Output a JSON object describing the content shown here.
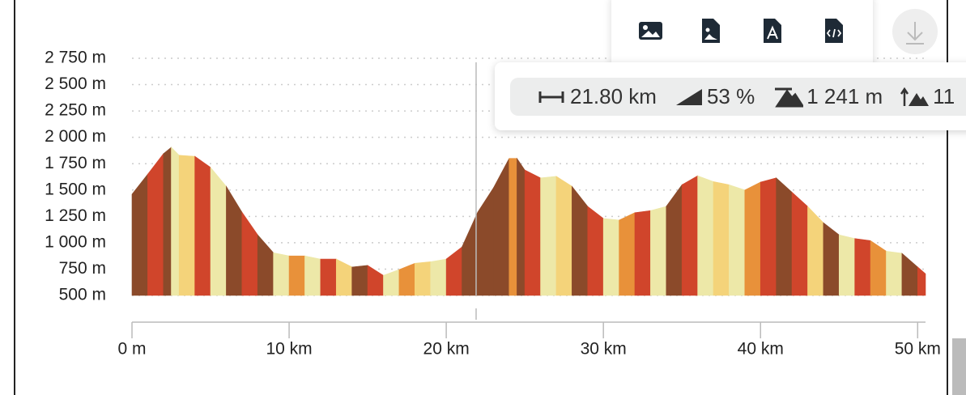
{
  "chart_data": {
    "type": "elevation-profile",
    "x": [
      0,
      1,
      2,
      2.5,
      3,
      4,
      5,
      6,
      7,
      8,
      9,
      10,
      11,
      12,
      13,
      14,
      15,
      16,
      17,
      18,
      19,
      20,
      21,
      22,
      23,
      24,
      24.5,
      25,
      26,
      27,
      28,
      29,
      30,
      31,
      32,
      33,
      34,
      35,
      36,
      37,
      38,
      39,
      40,
      41,
      42,
      43,
      44,
      45,
      46,
      47,
      48,
      49,
      50,
      50.5
    ],
    "values": [
      1460,
      1650,
      1845,
      1905,
      1830,
      1820,
      1715,
      1535,
      1290,
      1075,
      905,
      875,
      875,
      845,
      845,
      770,
      785,
      690,
      745,
      805,
      820,
      845,
      960,
      1290,
      1520,
      1800,
      1800,
      1690,
      1615,
      1630,
      1535,
      1345,
      1230,
      1215,
      1285,
      1305,
      1345,
      1550,
      1635,
      1580,
      1550,
      1500,
      1575,
      1615,
      1480,
      1345,
      1190,
      1075,
      1040,
      1020,
      920,
      900,
      770,
      705
    ],
    "segment_colors": [
      "#8b4a2a",
      "#d0452b",
      "#8b4a2a",
      "#ede8a8",
      "#f4d37a",
      "#d0452b",
      "#ede8a8",
      "#8b4a2a",
      "#d0452b",
      "#8b4a2a",
      "#ede8a8",
      "#e8913a",
      "#ede8a8",
      "#d0452b",
      "#f4d37a",
      "#8b4a2a",
      "#d0452b",
      "#ede8a8",
      "#e8913a",
      "#f4d37a",
      "#ede8a8",
      "#d0452b",
      "#8b4a2a",
      "#8b4a2a",
      "#8b4a2a",
      "#e8913a",
      "#8b4a2a",
      "#d0452b",
      "#ede8a8",
      "#f4d37a",
      "#8b4a2a",
      "#d0452b",
      "#ede8a8",
      "#e8913a",
      "#d0452b",
      "#ede8a8",
      "#8b4a2a",
      "#d0452b",
      "#ede8a8",
      "#f4d37a",
      "#ede8a8",
      "#e8913a",
      "#d0452b",
      "#8b4a2a",
      "#d0452b",
      "#f4d37a",
      "#8b4a2a",
      "#ede8a8",
      "#d0452b",
      "#e8913a",
      "#ede8a8",
      "#8b4a2a",
      "#d0452b"
    ],
    "xlim": [
      0,
      50.5
    ],
    "ylim": [
      500,
      2750
    ],
    "yticks": [
      {
        "value": 500,
        "label": "500 m"
      },
      {
        "value": 750,
        "label": "750 m"
      },
      {
        "value": 1000,
        "label": "1 000 m"
      },
      {
        "value": 1250,
        "label": "1 250 m"
      },
      {
        "value": 1500,
        "label": "1 500 m"
      },
      {
        "value": 1750,
        "label": "1 750 m"
      },
      {
        "value": 2000,
        "label": "2 000 m"
      },
      {
        "value": 2250,
        "label": "2 250 m"
      },
      {
        "value": 2500,
        "label": "2 500 m"
      },
      {
        "value": 2750,
        "label": "2 750 m"
      }
    ],
    "xticks": [
      {
        "value": 0,
        "label": "0 m"
      },
      {
        "value": 10,
        "label": "10 km"
      },
      {
        "value": 20,
        "label": "20 km"
      },
      {
        "value": 30,
        "label": "30 km"
      },
      {
        "value": 40,
        "label": "40 km"
      },
      {
        "value": 50,
        "label": "50 km"
      }
    ],
    "grid": true,
    "cursor_x": 21.9
  },
  "stats": {
    "distance": "21.80 km",
    "slope": "53 %",
    "elevation_max": "1 241 m",
    "elevation_gain": "11"
  }
}
